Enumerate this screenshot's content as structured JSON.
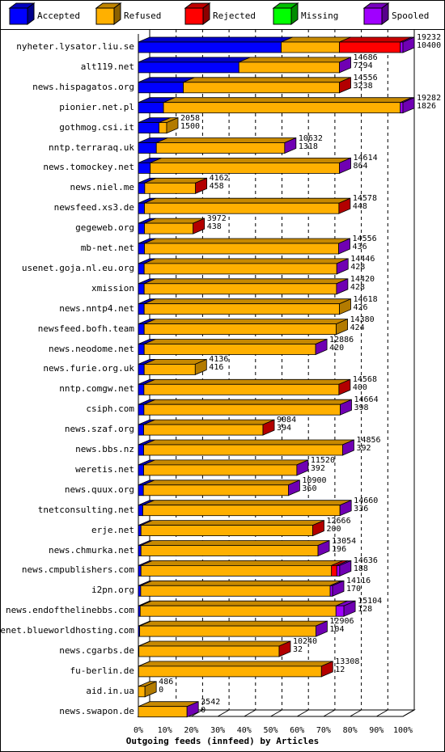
{
  "chart_data": {
    "type": "bar",
    "orientation": "horizontal",
    "stacked": true,
    "xlabel": "Outgoing feeds (innfeed) by Articles",
    "xlim": [
      0,
      100
    ],
    "xticks": [
      "0%",
      "10%",
      "20%",
      "30%",
      "40%",
      "50%",
      "60%",
      "70%",
      "80%",
      "90%",
      "100%"
    ],
    "legend_position": "top",
    "grid": true,
    "series": [
      {
        "name": "Accepted",
        "color": "#0000ff"
      },
      {
        "name": "Refused",
        "color": "#ffb000"
      },
      {
        "name": "Rejected",
        "color": "#ff0000"
      },
      {
        "name": "Missing",
        "color": "#00ff00"
      },
      {
        "name": "Spooled",
        "color": "#a000ff"
      }
    ],
    "rows": [
      {
        "host": "nyheter.lysator.liu.se",
        "total": "19232",
        "accepted_count": "10400",
        "accepted": 54,
        "refused": 22,
        "rejected": 23,
        "missing": 0,
        "spooled": 1,
        "end_color": "#a000ff"
      },
      {
        "host": "alt119.net",
        "total": "14686",
        "accepted_count": "7294",
        "accepted": 38,
        "refused": 38,
        "rejected": 0,
        "missing": 0,
        "spooled": 0,
        "end_color": "#a000ff"
      },
      {
        "host": "news.hispagatos.org",
        "total": "14556",
        "accepted_count": "3238",
        "accepted": 17,
        "refused": 59,
        "rejected": 0,
        "missing": 0,
        "spooled": 0,
        "end_color": "#ff0000"
      },
      {
        "host": "pionier.net.pl",
        "total": "19282",
        "accepted_count": "1826",
        "accepted": 9.5,
        "refused": 89.5,
        "rejected": 0,
        "missing": 0,
        "spooled": 1,
        "end_color": "#a000ff"
      },
      {
        "host": "gothmog.csi.it",
        "total": "2058",
        "accepted_count": "1500",
        "accepted": 7.8,
        "refused": 2.9,
        "rejected": 0,
        "missing": 0,
        "spooled": 0,
        "end_color": "#ffb000"
      },
      {
        "host": "nntp.terraraq.uk",
        "total": "10632",
        "accepted_count": "1318",
        "accepted": 6.8,
        "refused": 48.5,
        "rejected": 0,
        "missing": 0,
        "spooled": 0,
        "end_color": "#a000ff"
      },
      {
        "host": "news.tomockey.net",
        "total": "14614",
        "accepted_count": "864",
        "accepted": 4.5,
        "refused": 71.5,
        "rejected": 0,
        "missing": 0,
        "spooled": 0,
        "end_color": "#a000ff"
      },
      {
        "host": "news.niel.me",
        "total": "4162",
        "accepted_count": "458",
        "accepted": 2.4,
        "refused": 19.2,
        "rejected": 0,
        "missing": 0,
        "spooled": 0,
        "end_color": "#ff0000"
      },
      {
        "host": "newsfeed.xs3.de",
        "total": "14578",
        "accepted_count": "448",
        "accepted": 2.3,
        "refused": 73.5,
        "rejected": 0,
        "missing": 0,
        "spooled": 0,
        "end_color": "#ff0000"
      },
      {
        "host": "gegeweb.org",
        "total": "3972",
        "accepted_count": "438",
        "accepted": 2.3,
        "refused": 18.4,
        "rejected": 0,
        "missing": 0,
        "spooled": 0,
        "end_color": "#ff0000"
      },
      {
        "host": "mb-net.net",
        "total": "14556",
        "accepted_count": "436",
        "accepted": 2.3,
        "refused": 73.4,
        "rejected": 0,
        "missing": 0,
        "spooled": 0,
        "end_color": "#a000ff"
      },
      {
        "host": "usenet.goja.nl.eu.org",
        "total": "14446",
        "accepted_count": "428",
        "accepted": 2.2,
        "refused": 72.8,
        "rejected": 0,
        "missing": 0,
        "spooled": 0,
        "end_color": "#a000ff"
      },
      {
        "host": "xmission",
        "total": "14420",
        "accepted_count": "428",
        "accepted": 2.2,
        "refused": 72.7,
        "rejected": 0,
        "missing": 0,
        "spooled": 0,
        "end_color": "#a000ff"
      },
      {
        "host": "news.nntp4.net",
        "total": "14618",
        "accepted_count": "426",
        "accepted": 2.2,
        "refused": 73.8,
        "rejected": 0,
        "missing": 0,
        "spooled": 0,
        "end_color": "#ffb000"
      },
      {
        "host": "newsfeed.bofh.team",
        "total": "14380",
        "accepted_count": "424",
        "accepted": 2.2,
        "refused": 72.6,
        "rejected": 0,
        "missing": 0,
        "spooled": 0,
        "end_color": "#ffb000"
      },
      {
        "host": "news.neodome.net",
        "total": "12886",
        "accepted_count": "420",
        "accepted": 2.2,
        "refused": 64.8,
        "rejected": 0,
        "missing": 0,
        "spooled": 0,
        "end_color": "#a000ff"
      },
      {
        "host": "news.furie.org.uk",
        "total": "4136",
        "accepted_count": "416",
        "accepted": 2.2,
        "refused": 19.3,
        "rejected": 0,
        "missing": 0,
        "spooled": 0,
        "end_color": "#ffb000"
      },
      {
        "host": "nntp.comgw.net",
        "total": "14568",
        "accepted_count": "400",
        "accepted": 2.1,
        "refused": 73.7,
        "rejected": 0,
        "missing": 0,
        "spooled": 0,
        "end_color": "#ff0000"
      },
      {
        "host": "csiph.com",
        "total": "14664",
        "accepted_count": "398",
        "accepted": 2.1,
        "refused": 74.2,
        "rejected": 0,
        "missing": 0,
        "spooled": 0,
        "end_color": "#a000ff"
      },
      {
        "host": "news.szaf.org",
        "total": "9084",
        "accepted_count": "394",
        "accepted": 2.0,
        "refused": 45.1,
        "rejected": 0,
        "missing": 0,
        "spooled": 0,
        "end_color": "#ff0000"
      },
      {
        "host": "news.bbs.nz",
        "total": "14856",
        "accepted_count": "392",
        "accepted": 2.0,
        "refused": 75.2,
        "rejected": 0,
        "missing": 0,
        "spooled": 0,
        "end_color": "#a000ff"
      },
      {
        "host": "weretis.net",
        "total": "11520",
        "accepted_count": "392",
        "accepted": 2.0,
        "refused": 57.9,
        "rejected": 0,
        "missing": 0,
        "spooled": 0,
        "end_color": "#a000ff"
      },
      {
        "host": "news.quux.org",
        "total": "10900",
        "accepted_count": "360",
        "accepted": 1.9,
        "refused": 54.8,
        "rejected": 0,
        "missing": 0,
        "spooled": 0,
        "end_color": "#a000ff"
      },
      {
        "host": "tnetconsulting.net",
        "total": "14660",
        "accepted_count": "336",
        "accepted": 1.7,
        "refused": 74.5,
        "rejected": 0,
        "missing": 0,
        "spooled": 0,
        "end_color": "#a000ff"
      },
      {
        "host": "erje.net",
        "total": "12666",
        "accepted_count": "200",
        "accepted": 1.0,
        "refused": 64.9,
        "rejected": 0,
        "missing": 0,
        "spooled": 0,
        "end_color": "#ff0000"
      },
      {
        "host": "news.chmurka.net",
        "total": "13054",
        "accepted_count": "196",
        "accepted": 1.0,
        "refused": 66.9,
        "rejected": 0,
        "missing": 0,
        "spooled": 0,
        "end_color": "#a000ff"
      },
      {
        "host": "news.cmpublishers.com",
        "total": "14636",
        "accepted_count": "188",
        "accepted": 1.0,
        "refused": 72.0,
        "rejected": 2.0,
        "missing": 0,
        "spooled": 1.1,
        "end_color": "#a000ff"
      },
      {
        "host": "i2pn.org",
        "total": "14116",
        "accepted_count": "170",
        "accepted": 0.9,
        "refused": 71.6,
        "rejected": 0,
        "missing": 0,
        "spooled": 0.9,
        "end_color": "#a000ff"
      },
      {
        "host": "news.endofthelinebbs.com",
        "total": "15104",
        "accepted_count": "128",
        "accepted": 0.7,
        "refused": 74.0,
        "rejected": 0,
        "missing": 0,
        "spooled": 3.0,
        "end_color": "#a000ff"
      },
      {
        "host": "usenet.blueworldhosting.com",
        "total": "12906",
        "accepted_count": "104",
        "accepted": 0.5,
        "refused": 66.6,
        "rejected": 0,
        "missing": 0,
        "spooled": 0,
        "end_color": "#a000ff"
      },
      {
        "host": "news.cgarbs.de",
        "total": "10240",
        "accepted_count": "32",
        "accepted": 0.2,
        "refused": 53.0,
        "rejected": 0,
        "missing": 0,
        "spooled": 0,
        "end_color": "#ff0000"
      },
      {
        "host": "fu-berlin.de",
        "total": "13308",
        "accepted_count": "12",
        "accepted": 0.1,
        "refused": 69.1,
        "rejected": 0,
        "missing": 0,
        "spooled": 0,
        "end_color": "#ff0000"
      },
      {
        "host": "aid.in.ua",
        "total": "486",
        "accepted_count": "0",
        "accepted": 0,
        "refused": 2.5,
        "rejected": 0,
        "missing": 0,
        "spooled": 0,
        "end_color": "#ffb000"
      },
      {
        "host": "news.swapon.de",
        "total": "3542",
        "accepted_count": "0",
        "accepted": 0,
        "refused": 18.4,
        "rejected": 0,
        "missing": 0,
        "spooled": 0,
        "end_color": "#a000ff"
      }
    ]
  }
}
